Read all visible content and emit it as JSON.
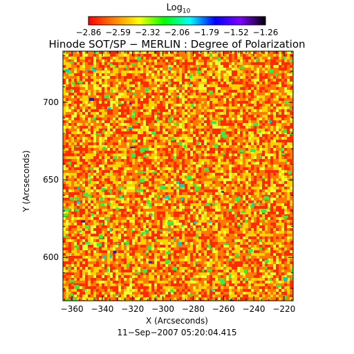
{
  "colorbar": {
    "title": "Log",
    "title_subscript": "10",
    "ticks": [
      "−2.86",
      "−2.59",
      "−2.32",
      "−2.06",
      "−1.79",
      "−1.52",
      "−1.26"
    ],
    "colormap": [
      "#ff0000",
      "#ff8000",
      "#ffff00",
      "#00ff00",
      "#00ffff",
      "#0000ff",
      "#8000ff",
      "#000000"
    ]
  },
  "chart_data": {
    "type": "heatmap",
    "title": "Hinode SOT/SP − MERLIN : Degree of Polarization",
    "xlabel": "X (Arcseconds)",
    "ylabel": "Y (Arcseconds)",
    "xlim": [
      -366,
      -214
    ],
    "ylim": [
      572,
      733
    ],
    "xticks": [
      -360,
      -340,
      -320,
      -300,
      -280,
      -260,
      -240,
      -220
    ],
    "xtick_labels": [
      "−360",
      "−340",
      "−320",
      "−300",
      "−280",
      "−260",
      "−240",
      "−220"
    ],
    "yticks": [
      600,
      650,
      700
    ],
    "ytick_labels": [
      "600",
      "650",
      "700"
    ],
    "value_range_log10": [
      -2.86,
      -1.26
    ],
    "grid": false
  },
  "footer": {
    "date": "11−Sep−2007 05:20:04.415"
  }
}
